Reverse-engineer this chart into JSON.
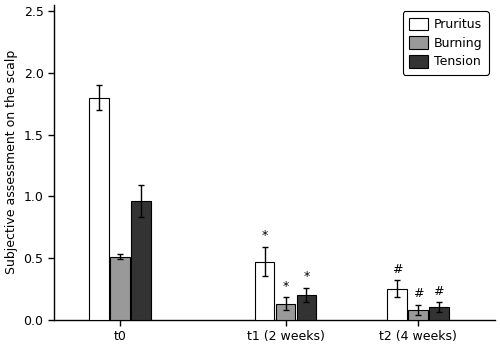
{
  "groups": [
    "t0",
    "t1 (2 weeks)",
    "t2 (4 weeks)"
  ],
  "series": [
    "Pruritus",
    "Burning",
    "Tension"
  ],
  "values": [
    [
      1.8,
      0.51,
      0.96
    ],
    [
      0.47,
      0.13,
      0.2
    ],
    [
      0.25,
      0.08,
      0.1
    ]
  ],
  "errors": [
    [
      0.1,
      0.02,
      0.13
    ],
    [
      0.12,
      0.05,
      0.06
    ],
    [
      0.07,
      0.04,
      0.04
    ]
  ],
  "colors": [
    "#ffffff",
    "#999999",
    "#333333"
  ],
  "edge_color": "#000000",
  "annotations_t1": [
    "*",
    "*",
    "*"
  ],
  "annotations_t2": [
    "#",
    "#",
    "#"
  ],
  "ylabel": "Subjective assessment on the scalp",
  "ylim": [
    0.0,
    2.55
  ],
  "yticks": [
    0.0,
    0.5,
    1.0,
    1.5,
    2.0,
    2.5
  ],
  "bar_width": 0.18,
  "group_centers": [
    1.0,
    2.5,
    3.7
  ],
  "legend_labels": [
    "Pruritus",
    "Burning",
    "Tension"
  ],
  "figsize": [
    5.0,
    3.48
  ],
  "dpi": 100,
  "annotation_fontsize": 9,
  "axis_fontsize": 9,
  "tick_fontsize": 9,
  "legend_fontsize": 9
}
